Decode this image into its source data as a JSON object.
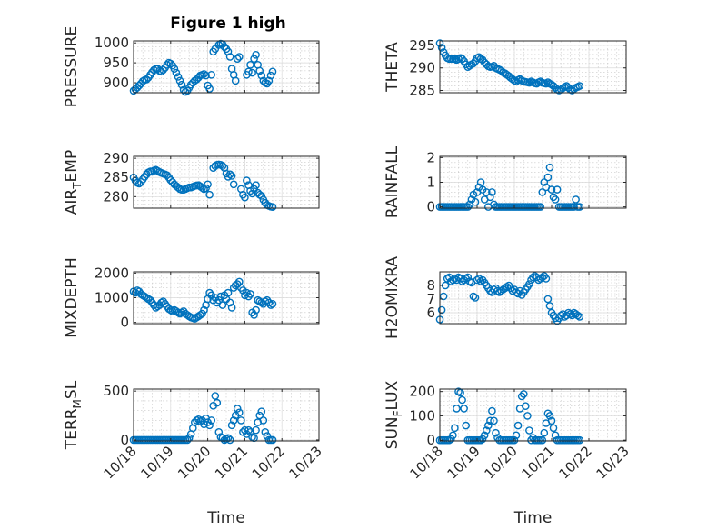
{
  "figure_title": "Figure 1 high",
  "colors": {
    "marker": "#0072BD",
    "axis": "#262626"
  },
  "chart_data": [
    {
      "id": "pressure",
      "type": "scatter",
      "ylabel": "PRESSURE",
      "yticks": [
        900,
        950,
        1000
      ],
      "ylim": [
        875,
        1005
      ],
      "xlim": [
        0,
        5
      ],
      "x_tick_labels_shown": false,
      "x": [
        0.0,
        0.05,
        0.1,
        0.15,
        0.2,
        0.25,
        0.3,
        0.35,
        0.4,
        0.45,
        0.5,
        0.55,
        0.6,
        0.65,
        0.7,
        0.75,
        0.8,
        0.85,
        0.9,
        0.95,
        1.0,
        1.05,
        1.1,
        1.15,
        1.2,
        1.25,
        1.3,
        1.35,
        1.4,
        1.45,
        1.5,
        1.55,
        1.6,
        1.65,
        1.7,
        1.75,
        1.8,
        1.85,
        1.9,
        1.95,
        2.0,
        2.05,
        2.1,
        2.15,
        2.2,
        2.3,
        2.35,
        2.4,
        2.45,
        2.5,
        2.55,
        2.6,
        2.65,
        2.7,
        2.75,
        2.8,
        2.85,
        3.05,
        3.1,
        3.15,
        3.2,
        3.25,
        3.3,
        3.35,
        3.4,
        3.45,
        3.5,
        3.55,
        3.6,
        3.65,
        3.7,
        3.75
      ],
      "values": [
        880,
        884,
        888,
        893,
        898,
        904,
        907,
        908,
        913,
        920,
        926,
        932,
        935,
        935,
        930,
        928,
        932,
        938,
        945,
        950,
        948,
        943,
        935,
        925,
        915,
        905,
        895,
        882,
        877,
        880,
        888,
        895,
        900,
        905,
        908,
        913,
        918,
        920,
        922,
        918,
        893,
        885,
        920,
        978,
        985,
        995,
        998,
        997,
        990,
        985,
        978,
        965,
        935,
        920,
        905,
        960,
        965,
        920,
        928,
        945,
        925,
        960,
        970,
        945,
        930,
        918,
        905,
        900,
        898,
        905,
        918,
        928
      ]
    },
    {
      "id": "theta",
      "type": "scatter",
      "ylabel": "THETA",
      "yticks": [
        285,
        290,
        295
      ],
      "ylim": [
        284.5,
        296
      ],
      "xlim": [
        0,
        5
      ],
      "x_tick_labels_shown": false,
      "x": [
        0.0,
        0.05,
        0.1,
        0.15,
        0.2,
        0.25,
        0.3,
        0.35,
        0.4,
        0.45,
        0.5,
        0.55,
        0.6,
        0.65,
        0.7,
        0.75,
        0.8,
        0.85,
        0.9,
        0.95,
        1.0,
        1.05,
        1.1,
        1.15,
        1.2,
        1.25,
        1.3,
        1.35,
        1.4,
        1.45,
        1.5,
        1.55,
        1.6,
        1.65,
        1.7,
        1.75,
        1.8,
        1.85,
        1.9,
        1.95,
        2.0,
        2.05,
        2.1,
        2.15,
        2.2,
        2.25,
        2.3,
        2.35,
        2.4,
        2.45,
        2.5,
        2.55,
        2.6,
        2.65,
        2.7,
        2.75,
        2.8,
        2.85,
        2.9,
        2.95,
        3.0,
        3.05,
        3.1,
        3.15,
        3.2,
        3.25,
        3.3,
        3.35,
        3.4,
        3.45,
        3.5,
        3.55,
        3.6,
        3.65,
        3.7,
        3.75
      ],
      "values": [
        295.5,
        294.5,
        293.5,
        292.8,
        292.2,
        292.0,
        292.0,
        292.0,
        292.0,
        291.8,
        292.0,
        292.2,
        292.0,
        291.5,
        290.8,
        290.2,
        290.5,
        290.8,
        291.0,
        291.5,
        292.2,
        292.4,
        292.0,
        291.8,
        291.2,
        290.8,
        290.4,
        290.2,
        290.3,
        290.5,
        290.0,
        289.8,
        289.6,
        289.4,
        289.0,
        288.8,
        288.5,
        288.2,
        287.8,
        287.5,
        287.2,
        287.0,
        287.3,
        287.5,
        287.2,
        287.0,
        286.9,
        286.8,
        286.7,
        287.0,
        286.8,
        286.6,
        286.5,
        286.8,
        287.0,
        286.7,
        286.6,
        286.5,
        286.8,
        286.5,
        286.3,
        286.0,
        285.6,
        285.2,
        285.0,
        285.2,
        285.5,
        285.8,
        286.0,
        285.6,
        285.2,
        285.0,
        285.3,
        285.6,
        285.8,
        286.0
      ]
    },
    {
      "id": "air_temp",
      "type": "scatter",
      "ylabel_main": "AIR",
      "ylabel_sub": "T",
      "ylabel_tail": "EMP",
      "yticks": [
        280,
        285,
        290
      ],
      "ylim": [
        277,
        290.5
      ],
      "xlim": [
        0,
        5
      ],
      "x_tick_labels_shown": false,
      "x": [
        0.0,
        0.05,
        0.1,
        0.15,
        0.2,
        0.25,
        0.3,
        0.35,
        0.4,
        0.45,
        0.5,
        0.55,
        0.6,
        0.65,
        0.7,
        0.75,
        0.8,
        0.85,
        0.9,
        0.95,
        1.0,
        1.05,
        1.1,
        1.15,
        1.2,
        1.25,
        1.3,
        1.35,
        1.4,
        1.45,
        1.5,
        1.55,
        1.6,
        1.65,
        1.7,
        1.75,
        1.8,
        1.85,
        1.9,
        1.95,
        2.0,
        2.05,
        2.15,
        2.2,
        2.25,
        2.3,
        2.35,
        2.4,
        2.45,
        2.5,
        2.55,
        2.6,
        2.65,
        2.7,
        2.9,
        2.95,
        3.0,
        3.05,
        3.1,
        3.15,
        3.2,
        3.25,
        3.3,
        3.35,
        3.4,
        3.45,
        3.5,
        3.55,
        3.6,
        3.65,
        3.7,
        3.75
      ],
      "values": [
        285.0,
        284.2,
        283.6,
        283.4,
        283.8,
        284.5,
        285.2,
        285.8,
        286.3,
        286.6,
        286.5,
        286.8,
        287.0,
        286.7,
        286.4,
        286.2,
        286.0,
        285.8,
        285.6,
        285.0,
        284.3,
        283.8,
        283.2,
        282.8,
        282.4,
        282.0,
        281.8,
        281.8,
        282.0,
        282.2,
        282.4,
        282.4,
        282.6,
        282.8,
        282.9,
        283.0,
        282.7,
        282.3,
        282.0,
        282.2,
        283.2,
        280.5,
        287.5,
        288.0,
        288.3,
        288.4,
        288.3,
        288.0,
        287.5,
        286.0,
        285.2,
        285.8,
        285.4,
        283.2,
        282.0,
        280.5,
        279.8,
        284.2,
        283.0,
        281.5,
        280.8,
        282.0,
        283.0,
        281.0,
        280.5,
        280.2,
        279.2,
        278.4,
        277.8,
        277.6,
        277.4,
        277.3
      ]
    },
    {
      "id": "rainfall",
      "type": "scatter",
      "ylabel": "RAINFALL",
      "yticks": [
        0,
        1,
        2
      ],
      "ylim": [
        -0.05,
        2.05
      ],
      "xlim": [
        0,
        5
      ],
      "x_tick_labels_shown": false,
      "x": [
        0.0,
        0.05,
        0.1,
        0.15,
        0.2,
        0.25,
        0.3,
        0.35,
        0.4,
        0.45,
        0.5,
        0.55,
        0.6,
        0.65,
        0.7,
        0.75,
        0.8,
        0.85,
        0.9,
        0.95,
        1.0,
        1.05,
        1.1,
        1.15,
        1.2,
        1.25,
        1.3,
        1.35,
        1.4,
        1.45,
        1.5,
        1.55,
        1.6,
        1.65,
        1.7,
        1.75,
        1.8,
        1.85,
        1.9,
        1.95,
        2.0,
        2.05,
        2.1,
        2.15,
        2.2,
        2.25,
        2.3,
        2.35,
        2.4,
        2.45,
        2.5,
        2.55,
        2.6,
        2.65,
        2.7,
        2.75,
        2.8,
        2.85,
        2.9,
        2.95,
        3.0,
        3.05,
        3.1,
        3.15,
        3.2,
        3.25,
        3.3,
        3.35,
        3.4,
        3.45,
        3.5,
        3.55,
        3.6,
        3.65,
        3.7,
        3.75
      ],
      "values": [
        0,
        0,
        0,
        0,
        0,
        0,
        0,
        0,
        0,
        0,
        0,
        0,
        0,
        0,
        0,
        0,
        0.1,
        0.3,
        0.5,
        0.2,
        0.6,
        0.8,
        1.0,
        0.7,
        0.3,
        0.6,
        0,
        0.4,
        0.6,
        0.1,
        0,
        0,
        0,
        0,
        0,
        0,
        0,
        0,
        0,
        0,
        0,
        0,
        0,
        0,
        0,
        0,
        0,
        0,
        0,
        0,
        0,
        0,
        0,
        0,
        0,
        0.6,
        1.0,
        0.8,
        1.2,
        1.6,
        0.7,
        0.4,
        0.3,
        0.7,
        0,
        0,
        0,
        0,
        0,
        0,
        0,
        0,
        0,
        0.3,
        0,
        0
      ]
    },
    {
      "id": "mixdepth",
      "type": "scatter",
      "ylabel": "MIXDEPTH",
      "yticks": [
        0,
        1000,
        2000
      ],
      "ylim": [
        -50,
        2050
      ],
      "xlim": [
        0,
        5
      ],
      "x_tick_labels_shown": false,
      "x": [
        0.0,
        0.05,
        0.1,
        0.15,
        0.2,
        0.25,
        0.3,
        0.35,
        0.4,
        0.45,
        0.5,
        0.55,
        0.6,
        0.65,
        0.7,
        0.75,
        0.8,
        0.85,
        0.9,
        0.95,
        1.0,
        1.05,
        1.1,
        1.15,
        1.2,
        1.25,
        1.3,
        1.35,
        1.4,
        1.45,
        1.5,
        1.55,
        1.6,
        1.65,
        1.7,
        1.75,
        1.8,
        1.85,
        1.9,
        1.95,
        2.0,
        2.05,
        2.1,
        2.15,
        2.2,
        2.25,
        2.3,
        2.35,
        2.4,
        2.45,
        2.5,
        2.55,
        2.6,
        2.65,
        2.7,
        2.75,
        2.8,
        2.85,
        2.9,
        2.95,
        3.0,
        3.05,
        3.1,
        3.15,
        3.2,
        3.25,
        3.3,
        3.35,
        3.4,
        3.45,
        3.5,
        3.55,
        3.6,
        3.65,
        3.7,
        3.75
      ],
      "values": [
        1250,
        1200,
        1300,
        1250,
        1150,
        1100,
        1050,
        1000,
        950,
        900,
        800,
        700,
        600,
        650,
        700,
        800,
        850,
        750,
        650,
        550,
        500,
        450,
        500,
        450,
        400,
        350,
        400,
        450,
        350,
        300,
        250,
        200,
        180,
        150,
        200,
        250,
        300,
        350,
        500,
        700,
        950,
        1200,
        1100,
        900,
        1000,
        800,
        900,
        1050,
        700,
        1100,
        950,
        1200,
        800,
        600,
        1400,
        1500,
        1550,
        1650,
        1400,
        1300,
        1100,
        1200,
        1050,
        1150,
        400,
        300,
        500,
        900,
        850,
        800,
        750,
        850,
        900,
        800,
        700,
        750
      ]
    },
    {
      "id": "h2omixra",
      "type": "scatter",
      "ylabel": "H2OMIXRA",
      "yticks": [
        6,
        7,
        8
      ],
      "ylim": [
        5.2,
        9.0
      ],
      "xlim": [
        0,
        5
      ],
      "x_tick_labels_shown": false,
      "x": [
        0.0,
        0.05,
        0.1,
        0.15,
        0.2,
        0.25,
        0.3,
        0.35,
        0.4,
        0.45,
        0.5,
        0.55,
        0.6,
        0.65,
        0.7,
        0.75,
        0.8,
        0.85,
        0.9,
        0.95,
        1.0,
        1.05,
        1.1,
        1.15,
        1.2,
        1.25,
        1.3,
        1.35,
        1.4,
        1.45,
        1.5,
        1.55,
        1.6,
        1.65,
        1.7,
        1.75,
        1.8,
        1.85,
        1.9,
        1.95,
        2.0,
        2.05,
        2.1,
        2.15,
        2.2,
        2.25,
        2.3,
        2.35,
        2.4,
        2.45,
        2.5,
        2.55,
        2.6,
        2.65,
        2.7,
        2.75,
        2.8,
        2.85,
        2.9,
        2.95,
        3.0,
        3.05,
        3.1,
        3.15,
        3.2,
        3.25,
        3.3,
        3.35,
        3.4,
        3.45,
        3.5,
        3.55,
        3.6,
        3.65,
        3.7,
        3.75
      ],
      "values": [
        5.5,
        6.2,
        7.2,
        8.0,
        8.5,
        8.6,
        8.3,
        8.4,
        8.5,
        8.4,
        8.6,
        8.5,
        8.3,
        8.4,
        8.5,
        8.6,
        8.3,
        8.2,
        7.2,
        7.1,
        8.4,
        8.5,
        8.3,
        8.4,
        8.2,
        8.0,
        7.8,
        7.6,
        7.5,
        7.7,
        7.8,
        7.6,
        7.5,
        7.6,
        7.7,
        7.8,
        7.9,
        8.0,
        7.8,
        7.6,
        7.7,
        7.5,
        7.4,
        7.6,
        7.3,
        7.5,
        7.7,
        7.9,
        8.1,
        8.4,
        8.6,
        8.7,
        8.6,
        8.4,
        8.5,
        8.6,
        8.7,
        8.5,
        7.0,
        6.5,
        6.0,
        5.8,
        5.6,
        5.4,
        5.6,
        5.8,
        5.9,
        5.7,
        5.8,
        6.0,
        5.9,
        5.8,
        6.0,
        5.9,
        5.8,
        5.7
      ]
    },
    {
      "id": "terr_msl",
      "type": "scatter",
      "ylabel_main": "TERR",
      "ylabel_sub": "M",
      "ylabel_tail": "SL",
      "yticks": [
        0,
        500
      ],
      "ylim": [
        -10,
        520
      ],
      "xlim": [
        0,
        5
      ],
      "x_tick_labels_shown": true,
      "x_tick_labels": [
        "10/18",
        "10/19",
        "10/20",
        "10/21",
        "10/22",
        "10/23"
      ],
      "xlabel": "Time",
      "x": [
        0.0,
        0.05,
        0.1,
        0.15,
        0.2,
        0.25,
        0.3,
        0.35,
        0.4,
        0.45,
        0.5,
        0.55,
        0.6,
        0.65,
        0.7,
        0.75,
        0.8,
        0.85,
        0.9,
        0.95,
        1.0,
        1.05,
        1.1,
        1.15,
        1.2,
        1.25,
        1.3,
        1.35,
        1.4,
        1.45,
        1.5,
        1.55,
        1.6,
        1.65,
        1.7,
        1.75,
        1.8,
        1.85,
        1.9,
        1.95,
        2.0,
        2.05,
        2.1,
        2.15,
        2.2,
        2.25,
        2.3,
        2.35,
        2.4,
        2.45,
        2.5,
        2.55,
        2.6,
        2.65,
        2.7,
        2.75,
        2.8,
        2.85,
        2.9,
        2.95,
        3.0,
        3.05,
        3.1,
        3.15,
        3.2,
        3.25,
        3.3,
        3.35,
        3.4,
        3.45,
        3.5,
        3.55,
        3.6,
        3.65,
        3.7,
        3.75
      ],
      "values": [
        0,
        0,
        0,
        0,
        0,
        0,
        0,
        0,
        0,
        0,
        0,
        0,
        0,
        0,
        0,
        0,
        0,
        0,
        0,
        0,
        0,
        0,
        0,
        0,
        0,
        0,
        0,
        0,
        0,
        0,
        20,
        60,
        120,
        180,
        200,
        210,
        190,
        200,
        160,
        220,
        180,
        150,
        200,
        350,
        450,
        380,
        80,
        30,
        20,
        0,
        10,
        20,
        0,
        150,
        200,
        250,
        320,
        280,
        200,
        80,
        100,
        60,
        100,
        80,
        30,
        20,
        100,
        180,
        250,
        290,
        200,
        80,
        40,
        0,
        0,
        0
      ]
    },
    {
      "id": "sun_flux",
      "type": "scatter",
      "ylabel_main": "SUN",
      "ylabel_sub": "F",
      "ylabel_tail": "LUX",
      "yticks": [
        0,
        100,
        200
      ],
      "ylim": [
        -3,
        210
      ],
      "xlim": [
        0,
        5
      ],
      "x_tick_labels_shown": true,
      "x_tick_labels": [
        "10/18",
        "10/19",
        "10/20",
        "10/21",
        "10/22",
        "10/23"
      ],
      "xlabel": "Time",
      "x": [
        0.0,
        0.05,
        0.1,
        0.15,
        0.2,
        0.25,
        0.3,
        0.35,
        0.4,
        0.45,
        0.5,
        0.55,
        0.6,
        0.65,
        0.7,
        0.75,
        0.8,
        0.85,
        0.9,
        0.95,
        1.0,
        1.05,
        1.1,
        1.15,
        1.2,
        1.25,
        1.3,
        1.35,
        1.4,
        1.45,
        1.5,
        1.55,
        1.6,
        1.65,
        1.7,
        1.75,
        1.8,
        1.85,
        1.9,
        1.95,
        2.0,
        2.05,
        2.1,
        2.15,
        2.2,
        2.25,
        2.3,
        2.35,
        2.4,
        2.45,
        2.5,
        2.55,
        2.6,
        2.65,
        2.7,
        2.75,
        2.8,
        2.85,
        2.9,
        2.95,
        3.0,
        3.05,
        3.1,
        3.15,
        3.2,
        3.25,
        3.3,
        3.35,
        3.4,
        3.45,
        3.5,
        3.55,
        3.6,
        3.65,
        3.7,
        3.75
      ],
      "values": [
        0,
        0,
        0,
        0,
        0,
        0,
        5,
        20,
        50,
        130,
        200,
        195,
        165,
        130,
        60,
        0,
        0,
        0,
        0,
        0,
        0,
        0,
        0,
        5,
        20,
        40,
        60,
        80,
        120,
        80,
        30,
        10,
        0,
        0,
        0,
        0,
        0,
        0,
        0,
        0,
        0,
        20,
        60,
        130,
        180,
        190,
        140,
        100,
        40,
        0,
        10,
        0,
        0,
        0,
        0,
        0,
        30,
        70,
        110,
        100,
        80,
        50,
        20,
        0,
        0,
        0,
        0,
        0,
        0,
        0,
        0,
        0,
        0,
        0,
        0,
        0
      ]
    }
  ]
}
